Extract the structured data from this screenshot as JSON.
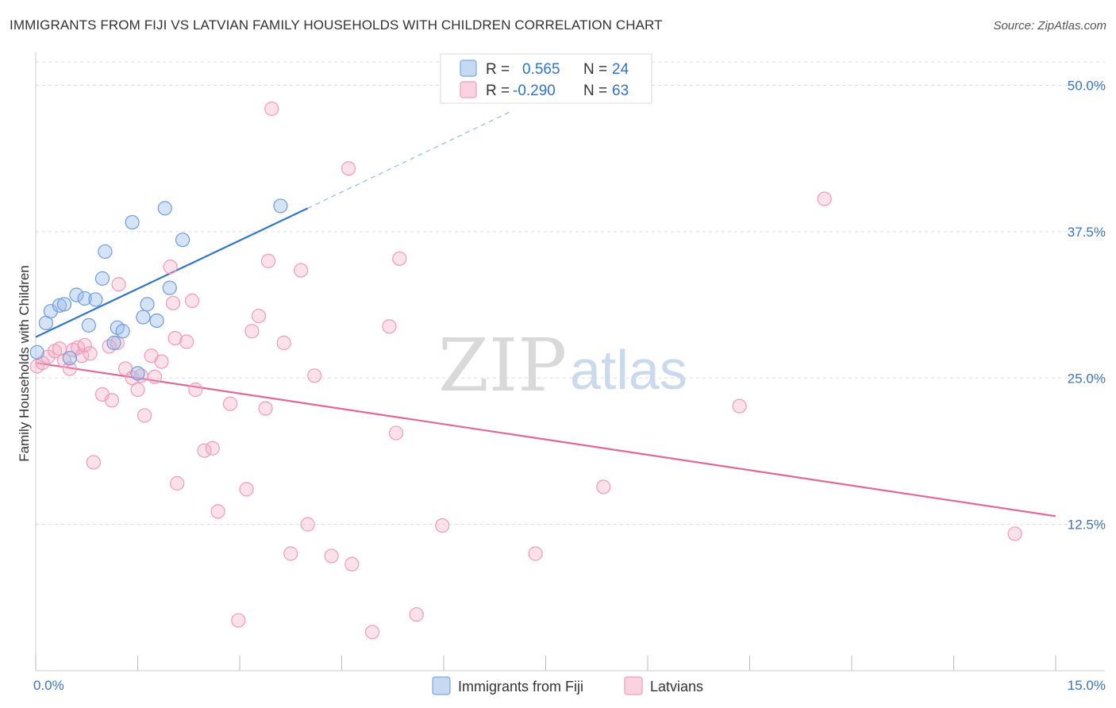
{
  "title": "IMMIGRANTS FROM FIJI VS LATVIAN FAMILY HOUSEHOLDS WITH CHILDREN CORRELATION CHART",
  "source": "Source: ZipAtlas.com",
  "watermark": {
    "zip": "ZIP",
    "atlas": "atlas"
  },
  "legend": {
    "rows": [
      {
        "r_label": "R =",
        "r_value": "0.565",
        "n_label": "N =",
        "n_value": "24"
      },
      {
        "r_label": "R =",
        "r_value": "-0.290",
        "n_label": "N =",
        "n_value": "63"
      }
    ]
  },
  "chart_data": {
    "type": "scatter",
    "title": "IMMIGRANTS FROM FIJI VS LATVIAN FAMILY HOUSEHOLDS WITH CHILDREN CORRELATION CHART",
    "xlabel": "",
    "ylabel": "Family Households with Children",
    "xlim": [
      0,
      15
    ],
    "ylim": [
      0,
      52
    ],
    "x_tick_labels": {
      "min": "0.0%",
      "max": "15.0%"
    },
    "y_ticks": [
      12.5,
      25.0,
      37.5,
      50.0
    ],
    "y_tick_labels": [
      "12.5%",
      "25.0%",
      "37.5%",
      "50.0%"
    ],
    "colors": {
      "fiji": "#6fa0e0",
      "latvians": "#ef8fb0",
      "fiji_line": "#2f74cc",
      "latvian_line": "#e0679a"
    },
    "series": [
      {
        "name": "Immigrants from Fiji",
        "points": [
          [
            0.02,
            27.2
          ],
          [
            0.15,
            29.7
          ],
          [
            0.22,
            30.7
          ],
          [
            0.35,
            31.2
          ],
          [
            0.42,
            31.3
          ],
          [
            0.6,
            32.1
          ],
          [
            0.72,
            31.8
          ],
          [
            0.78,
            29.5
          ],
          [
            0.88,
            31.7
          ],
          [
            0.98,
            33.5
          ],
          [
            1.02,
            35.8
          ],
          [
            1.15,
            28.0
          ],
          [
            1.2,
            29.3
          ],
          [
            1.28,
            29.0
          ],
          [
            1.42,
            38.3
          ],
          [
            1.5,
            25.4
          ],
          [
            1.58,
            30.2
          ],
          [
            1.64,
            31.3
          ],
          [
            1.78,
            29.9
          ],
          [
            1.9,
            39.5
          ],
          [
            1.97,
            32.7
          ],
          [
            2.16,
            36.8
          ],
          [
            3.6,
            39.7
          ],
          [
            0.5,
            26.7
          ]
        ],
        "trend": {
          "x": [
            0,
            4.0
          ],
          "y": [
            28.5,
            39.5
          ],
          "dashed_to": [
            7.0,
            47.8
          ]
        }
      },
      {
        "name": "Latvians",
        "points": [
          [
            0.02,
            26.0
          ],
          [
            0.1,
            26.3
          ],
          [
            0.18,
            26.8
          ],
          [
            0.28,
            27.3
          ],
          [
            0.35,
            27.5
          ],
          [
            0.42,
            26.5
          ],
          [
            0.5,
            25.8
          ],
          [
            0.55,
            27.4
          ],
          [
            0.62,
            27.6
          ],
          [
            0.68,
            26.9
          ],
          [
            0.72,
            27.8
          ],
          [
            0.8,
            27.1
          ],
          [
            0.85,
            17.8
          ],
          [
            0.98,
            23.6
          ],
          [
            1.08,
            27.7
          ],
          [
            1.12,
            23.1
          ],
          [
            1.2,
            28.0
          ],
          [
            1.22,
            33.0
          ],
          [
            1.32,
            25.8
          ],
          [
            1.42,
            25.0
          ],
          [
            1.5,
            24.0
          ],
          [
            1.55,
            25.2
          ],
          [
            1.6,
            21.8
          ],
          [
            1.7,
            26.9
          ],
          [
            1.75,
            25.1
          ],
          [
            1.85,
            26.4
          ],
          [
            1.98,
            34.5
          ],
          [
            2.02,
            31.4
          ],
          [
            2.05,
            28.4
          ],
          [
            2.08,
            16.0
          ],
          [
            2.22,
            28.1
          ],
          [
            2.3,
            31.6
          ],
          [
            2.35,
            24.0
          ],
          [
            2.48,
            18.8
          ],
          [
            2.6,
            19.0
          ],
          [
            2.68,
            13.6
          ],
          [
            2.86,
            22.8
          ],
          [
            2.98,
            4.3
          ],
          [
            3.1,
            15.5
          ],
          [
            3.18,
            29.0
          ],
          [
            3.28,
            30.3
          ],
          [
            3.38,
            22.4
          ],
          [
            3.42,
            35.0
          ],
          [
            3.47,
            48.0
          ],
          [
            3.65,
            28.0
          ],
          [
            3.75,
            10.0
          ],
          [
            3.9,
            34.2
          ],
          [
            4.0,
            12.5
          ],
          [
            4.1,
            25.2
          ],
          [
            4.35,
            9.8
          ],
          [
            4.6,
            42.9
          ],
          [
            4.65,
            9.1
          ],
          [
            4.95,
            3.3
          ],
          [
            5.2,
            29.4
          ],
          [
            5.3,
            20.3
          ],
          [
            5.35,
            35.2
          ],
          [
            5.6,
            4.8
          ],
          [
            5.98,
            12.4
          ],
          [
            7.35,
            10.0
          ],
          [
            8.35,
            15.7
          ],
          [
            10.35,
            22.6
          ],
          [
            11.6,
            40.3
          ],
          [
            14.4,
            11.7
          ]
        ],
        "trend": {
          "x": [
            0,
            15
          ],
          "y": [
            26.3,
            13.2
          ]
        }
      }
    ]
  },
  "bottom_legend": [
    "Immigrants from Fiji",
    "Latvians"
  ]
}
